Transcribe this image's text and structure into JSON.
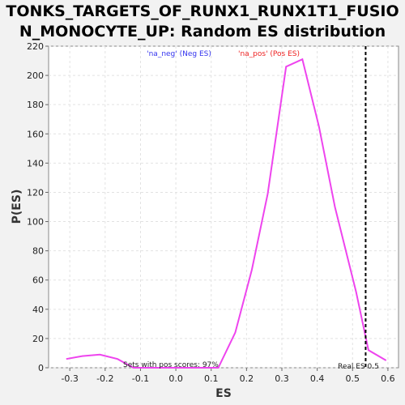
{
  "chart_data": {
    "type": "line",
    "title_line1": "TONKS_TARGETS_OF_RUNX1_RUNX1T1_FUSIO",
    "title_line2": "N_MONOCYTE_UP: Random ES distribution",
    "xlabel": "ES",
    "ylabel": "P(ES)",
    "xlim": [
      -0.36,
      0.63
    ],
    "ylim": [
      0,
      220
    ],
    "x_ticks": [
      -0.3,
      -0.2,
      -0.1,
      0.0,
      0.1,
      0.2,
      0.3,
      0.4,
      0.5,
      0.6
    ],
    "x_tick_labels": [
      "-0.3",
      "-0.2",
      "-0.1",
      "0.0",
      "0.1",
      "0.2",
      "0.3",
      "0.4",
      "0.5",
      "0.6"
    ],
    "y_ticks": [
      0,
      20,
      40,
      60,
      80,
      100,
      120,
      140,
      160,
      180,
      200,
      220
    ],
    "y_tick_labels": [
      "0",
      "20",
      "40",
      "60",
      "80",
      "100",
      "120",
      "140",
      "160",
      "180",
      "200",
      "220"
    ],
    "grid": true,
    "legend": [
      {
        "label": "'na_neg' (Neg ES)",
        "color": "#3333ee"
      },
      {
        "label": "'na_pos' (Pos ES)",
        "color": "#ee2222"
      }
    ],
    "series": [
      {
        "color": "#ee44ee",
        "x": [
          -0.31,
          -0.265,
          -0.215,
          -0.165,
          -0.12,
          0.12,
          0.168,
          0.215,
          0.26,
          0.312,
          0.358,
          0.405,
          0.45,
          0.51,
          0.545,
          0.595
        ],
        "y": [
          6,
          8,
          9,
          6,
          0,
          0,
          24,
          67,
          119,
          206,
          211,
          165,
          110,
          52,
          12,
          5
        ]
      }
    ],
    "real_es": 0.537,
    "annotations": {
      "sets_with_pos": "Sets with pos scores: 97%",
      "real_es_label": "Real ES 0.5"
    }
  }
}
